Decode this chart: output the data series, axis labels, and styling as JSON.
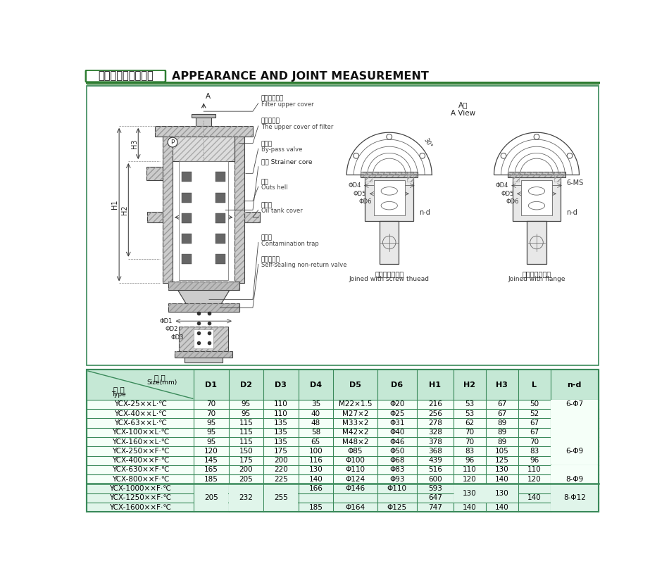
{
  "title_chinese": "五、外形及连接尺寸",
  "title_english": "APPEARANCE AND JOINT MEASUREMENT",
  "table_data": [
    [
      "YCX-25××L·℃",
      "70",
      "95",
      "110",
      "35",
      "M22×1.5",
      "Φ20",
      "216",
      "53",
      "67",
      "50",
      "6-Φ7"
    ],
    [
      "YCX-40××L·℃",
      "70",
      "95",
      "110",
      "40",
      "M27×2",
      "Φ25",
      "256",
      "53",
      "67",
      "52",
      ""
    ],
    [
      "YCX-63××L·℃",
      "95",
      "115",
      "135",
      "48",
      "M33×2",
      "Φ31",
      "278",
      "62",
      "89",
      "67",
      ""
    ],
    [
      "YCX-100××L·℃",
      "95",
      "115",
      "135",
      "58",
      "M42×2",
      "Φ40",
      "328",
      "70",
      "89",
      "67",
      ""
    ],
    [
      "YCX-160××L·℃",
      "95",
      "115",
      "135",
      "65",
      "M48×2",
      "Φ46",
      "378",
      "70",
      "89",
      "70",
      "6-Φ9"
    ],
    [
      "YCX-250××F·℃",
      "120",
      "150",
      "175",
      "100",
      "Φ85",
      "Φ50",
      "368",
      "83",
      "105",
      "83",
      ""
    ],
    [
      "YCX-400××F·℃",
      "145",
      "175",
      "200",
      "116",
      "Φ100",
      "Φ68",
      "439",
      "96",
      "125",
      "96",
      ""
    ],
    [
      "YCX-630××F·℃",
      "165",
      "200",
      "220",
      "130",
      "Φ110",
      "Φ83",
      "516",
      "110",
      "130",
      "110",
      "8-Φ9"
    ],
    [
      "YCX-800××F·℃",
      "185",
      "205",
      "225",
      "140",
      "Φ124",
      "Φ93",
      "600",
      "120",
      "140",
      "120",
      ""
    ],
    [
      "YCX-1000××F·℃",
      "",
      "",
      "",
      "166",
      "Φ146",
      "Φ110",
      "593",
      "130",
      "130",
      "",
      ""
    ],
    [
      "YCX-1250××F·℃",
      "205",
      "232",
      "255",
      "",
      "",
      "",
      "647",
      "",
      "",
      "140",
      "8-Φ12"
    ],
    [
      "YCX-1600××F·℃",
      "",
      "",
      "",
      "185",
      "Φ164",
      "Φ125",
      "747",
      "140",
      "140",
      "",
      ""
    ]
  ],
  "col_headers": [
    "D1",
    "D2",
    "D3",
    "D4",
    "D5",
    "D6",
    "H1",
    "H2",
    "H3",
    "L",
    "n-d"
  ],
  "table_border_color": "#3a8a5a",
  "table_header_bg": "#c5e8d5",
  "draw_border_color": "#3a8a5a",
  "bg_color": "#ffffff"
}
